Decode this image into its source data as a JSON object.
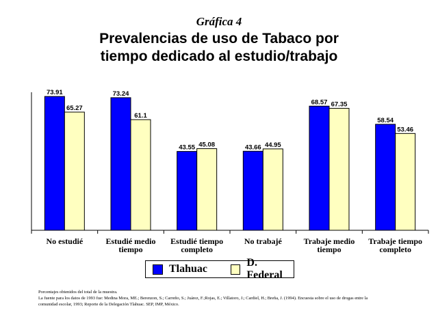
{
  "label": "Gráfica 4",
  "chart_data": {
    "type": "bar",
    "title": "Prevalencias de uso de Tabaco por tiempo dedicado al estudio/trabajo",
    "title_lines": [
      "Prevalencias de uso de Tabaco por",
      "tiempo dedicado al estudio/trabajo"
    ],
    "categories": [
      [
        "No estudié"
      ],
      [
        "Estudié medio",
        "tiempo"
      ],
      [
        "Estudié tiempo",
        "completo"
      ],
      [
        "No trabajé"
      ],
      [
        "Trabaje medio",
        "tiempo"
      ],
      [
        "Trabaje tiempo",
        "completo"
      ]
    ],
    "series": [
      {
        "name": "Tlahuac",
        "color": "#0000ff",
        "values": [
          73.91,
          73.24,
          43.55,
          43.66,
          68.57,
          58.54
        ],
        "labels": [
          "73.91",
          "73.24",
          "43.55",
          "43.66",
          "68.57",
          "58.54"
        ]
      },
      {
        "name": "D. Federal",
        "color": "#ffffc0",
        "values": [
          65.27,
          61.1,
          45.08,
          44.95,
          67.35,
          53.46
        ],
        "labels": [
          "65.27",
          "61.1",
          "45.08",
          "44.95",
          "67.35",
          "53.46"
        ]
      }
    ],
    "ylim": [
      0,
      80
    ],
    "xlabel": "",
    "ylabel": "",
    "legend": "bottom",
    "grid": false
  },
  "notes": [
    "Porcentajes obtenidos del total de la muestra.",
    "La fuente para los datos de 1993 fue: Medina Mora, ME.; Berenzon, S.; Carreño, S.; Juárez, F.;Rojas, E.; Villatoro, J.; Cardiel, H.; Breña, J. (1994). Encuesta sobre el uso de drogas entre la",
    "comunidad escolar, 1993; Reporte de la Delegación Tlahuac. SEP, IMP, México."
  ]
}
